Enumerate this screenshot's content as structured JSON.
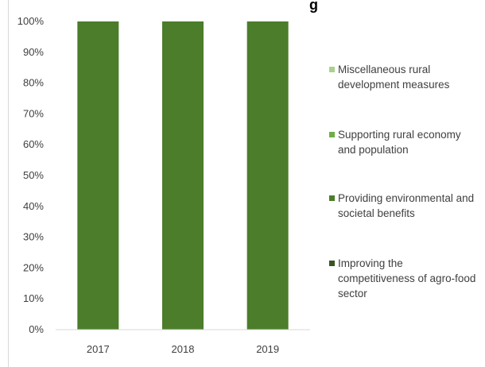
{
  "chart_data": {
    "type": "bar",
    "stacked": true,
    "normalized": true,
    "title": "",
    "title_fragment": "g",
    "xlabel": "",
    "ylabel": "",
    "ylim": [
      0,
      100
    ],
    "y_ticks": [
      "0%",
      "10%",
      "20%",
      "30%",
      "40%",
      "50%",
      "60%",
      "70%",
      "80%",
      "90%",
      "100%"
    ],
    "categories": [
      "2017",
      "2018",
      "2019"
    ],
    "series": [
      {
        "name": "Improving the competitiveness of agro-food sector",
        "color": "#375623",
        "values": [
          0,
          0,
          0
        ]
      },
      {
        "name": "Providing environmental and societal benefits",
        "color": "#4b7d2a",
        "values": [
          100,
          100,
          100
        ]
      },
      {
        "name": "Supporting rural economy and population",
        "color": "#70ad47",
        "values": [
          0,
          0,
          0
        ]
      },
      {
        "name": "Miscellaneous rural development measures",
        "color": "#a9d18e",
        "values": [
          0,
          0,
          0
        ]
      }
    ],
    "legend": {
      "position": "right",
      "order": [
        3,
        2,
        1,
        0
      ],
      "lines": [
        [
          "Miscellaneous rural",
          "development measures"
        ],
        [
          "Supporting rural economy",
          "and population"
        ],
        [
          "Providing environmental and",
          "societal benefits"
        ],
        [
          "Improving the",
          "competitiveness of agro-food",
          "sector"
        ]
      ]
    },
    "grid": false
  }
}
